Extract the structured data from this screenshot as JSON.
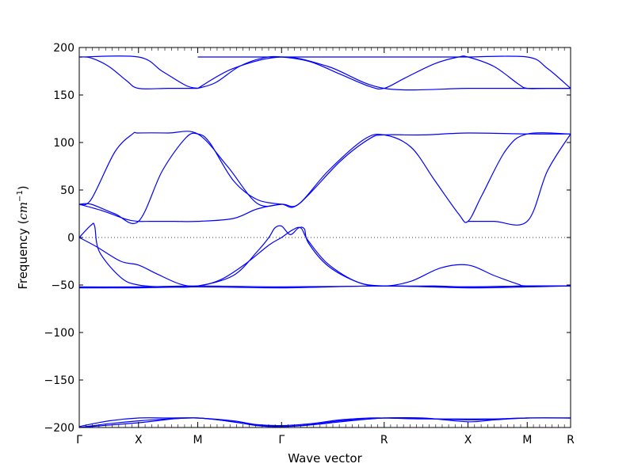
{
  "chart_data": {
    "type": "line",
    "xlabel": "Wave vector",
    "ylabel": "Frequency (cm⁻¹)",
    "ylabel_parts": {
      "prefix": "Frequency (",
      "unit": "cm",
      "exponent": "−1",
      "suffix": ")"
    },
    "ylim": [
      -200,
      200
    ],
    "yticks": [
      {
        "value": 200,
        "label": "200"
      },
      {
        "value": 150,
        "label": "150"
      },
      {
        "value": 100,
        "label": "100"
      },
      {
        "value": 50,
        "label": "50"
      },
      {
        "value": 0,
        "label": "0"
      },
      {
        "value": -50,
        "label": "−50"
      },
      {
        "value": -100,
        "label": "−100"
      },
      {
        "value": -150,
        "label": "−150"
      },
      {
        "value": -200,
        "label": "−200"
      }
    ],
    "xlim": [
      0,
      4.146
    ],
    "high_symmetry_points": [
      {
        "label": "Γ",
        "x": 0.0
      },
      {
        "label": "X",
        "x": 0.5
      },
      {
        "label": "M",
        "x": 1.0
      },
      {
        "label": "Γ",
        "x": 1.707
      },
      {
        "label": "R",
        "x": 2.573
      },
      {
        "label": "X",
        "x": 3.28
      },
      {
        "label": "M",
        "x": 3.78
      },
      {
        "label": "R",
        "x": 4.146
      }
    ],
    "zero_line": true,
    "color": "#0000ff",
    "series": [
      {
        "points": [
          [
            0,
            190
          ],
          [
            0.1,
            189
          ],
          [
            0.25,
            180
          ],
          [
            0.4,
            165
          ],
          [
            0.5,
            157
          ],
          [
            0.75,
            157
          ],
          [
            1.0,
            157
          ]
        ]
      },
      {
        "points": [
          [
            0,
            190
          ],
          [
            0.5,
            190
          ],
          [
            0.7,
            175
          ],
          [
            0.9,
            160
          ],
          [
            1.0,
            157
          ]
        ]
      },
      {
        "points": [
          [
            1.0,
            157
          ],
          [
            1.15,
            163
          ],
          [
            1.35,
            180
          ],
          [
            1.55,
            189
          ],
          [
            1.707,
            190
          ],
          [
            1.95,
            185
          ],
          [
            2.2,
            172
          ],
          [
            2.45,
            159
          ],
          [
            2.573,
            157
          ],
          [
            2.75,
            168
          ],
          [
            3.0,
            183
          ],
          [
            3.2,
            190
          ],
          [
            3.28,
            190
          ],
          [
            3.5,
            180
          ],
          [
            3.7,
            162
          ],
          [
            3.78,
            157
          ],
          [
            3.95,
            157
          ],
          [
            4.146,
            157
          ]
        ]
      },
      {
        "points": [
          [
            1.0,
            157
          ],
          [
            1.3,
            178
          ],
          [
            1.707,
            190
          ],
          [
            2.1,
            180
          ],
          [
            2.573,
            157
          ],
          [
            3.28,
            157
          ],
          [
            3.78,
            157
          ],
          [
            4.146,
            157
          ]
        ]
      },
      {
        "points": [
          [
            3.28,
            190
          ],
          [
            3.78,
            190
          ],
          [
            3.95,
            178
          ],
          [
            4.146,
            157
          ]
        ]
      },
      {
        "points": [
          [
            1.0,
            190
          ],
          [
            1.707,
            190
          ],
          [
            2.573,
            190
          ],
          [
            3.28,
            190
          ]
        ]
      },
      {
        "points": [
          [
            0,
            35
          ],
          [
            0.1,
            40
          ],
          [
            0.3,
            90
          ],
          [
            0.45,
            109
          ],
          [
            0.5,
            110
          ],
          [
            0.75,
            110
          ],
          [
            1.0,
            109
          ],
          [
            1.25,
            75
          ],
          [
            1.5,
            36
          ],
          [
            1.707,
            35
          ],
          [
            1.85,
            35
          ],
          [
            2.2,
            80
          ],
          [
            2.45,
            104
          ],
          [
            2.573,
            108
          ],
          [
            2.9,
            108
          ],
          [
            3.28,
            110
          ],
          [
            3.78,
            109
          ],
          [
            4.146,
            109
          ]
        ]
      },
      {
        "points": [
          [
            0,
            35
          ],
          [
            0.2,
            28
          ],
          [
            0.4,
            19
          ],
          [
            0.5,
            17
          ],
          [
            0.6,
            17
          ],
          [
            0.8,
            17
          ],
          [
            1.0,
            17
          ],
          [
            1.3,
            20
          ],
          [
            1.5,
            30
          ],
          [
            1.707,
            35
          ],
          [
            1.85,
            35
          ],
          [
            2.1,
            70
          ],
          [
            2.4,
            103
          ],
          [
            2.573,
            108
          ],
          [
            2.8,
            95
          ],
          [
            3.0,
            60
          ],
          [
            3.2,
            25
          ],
          [
            3.28,
            17
          ],
          [
            3.4,
            45
          ],
          [
            3.6,
            92
          ],
          [
            3.78,
            109
          ],
          [
            4.146,
            109
          ]
        ]
      },
      {
        "points": [
          [
            0,
            35
          ],
          [
            0.1,
            35
          ],
          [
            0.3,
            25
          ],
          [
            0.5,
            17
          ],
          [
            0.7,
            70
          ],
          [
            0.9,
            105
          ],
          [
            1.0,
            109
          ],
          [
            1.1,
            100
          ],
          [
            1.3,
            60
          ],
          [
            1.5,
            40
          ],
          [
            1.707,
            35
          ]
        ]
      },
      {
        "points": [
          [
            3.28,
            17
          ],
          [
            3.5,
            17
          ],
          [
            3.78,
            17
          ],
          [
            3.95,
            70
          ],
          [
            4.146,
            109
          ]
        ]
      },
      {
        "points": [
          [
            0,
            0
          ],
          [
            0.1,
            13
          ],
          [
            0.13,
            12
          ],
          [
            0.17,
            -15
          ],
          [
            0.35,
            -42
          ],
          [
            0.5,
            -50
          ],
          [
            0.75,
            -52
          ],
          [
            1.0,
            -51
          ],
          [
            1.3,
            -40
          ],
          [
            1.5,
            -15
          ],
          [
            1.6,
            0
          ],
          [
            1.65,
            10
          ],
          [
            1.707,
            12
          ],
          [
            1.78,
            3
          ],
          [
            1.85,
            10
          ],
          [
            1.9,
            9
          ],
          [
            1.93,
            -5
          ],
          [
            2.1,
            -30
          ],
          [
            2.35,
            -47
          ],
          [
            2.573,
            -51
          ],
          [
            3.0,
            -51
          ],
          [
            3.28,
            -52
          ],
          [
            3.78,
            -51
          ],
          [
            4.146,
            -51
          ]
        ]
      },
      {
        "points": [
          [
            0,
            0
          ],
          [
            0.15,
            -10
          ],
          [
            0.35,
            -25
          ],
          [
            0.5,
            -29
          ],
          [
            0.65,
            -38
          ],
          [
            0.85,
            -49
          ],
          [
            1.0,
            -51
          ],
          [
            1.2,
            -44
          ],
          [
            1.4,
            -28
          ],
          [
            1.6,
            -8
          ],
          [
            1.707,
            0
          ],
          [
            1.8,
            8
          ],
          [
            1.87,
            10
          ],
          [
            1.93,
            -3
          ],
          [
            2.1,
            -28
          ],
          [
            2.35,
            -47
          ],
          [
            2.573,
            -51
          ],
          [
            2.8,
            -46
          ],
          [
            3.05,
            -32
          ],
          [
            3.28,
            -29
          ],
          [
            3.5,
            -40
          ],
          [
            3.7,
            -49
          ],
          [
            3.78,
            -51
          ],
          [
            4.146,
            -51
          ]
        ]
      },
      {
        "points": [
          [
            0,
            -53
          ],
          [
            0.5,
            -53
          ],
          [
            1.0,
            -52
          ],
          [
            1.707,
            -53
          ],
          [
            2.573,
            -51
          ],
          [
            3.28,
            -53
          ],
          [
            3.78,
            -52
          ],
          [
            4.146,
            -51
          ]
        ]
      },
      {
        "points": [
          [
            0,
            -52
          ],
          [
            0.5,
            -52
          ],
          [
            1.0,
            -51
          ],
          [
            1.707,
            -52
          ],
          [
            2.573,
            -51
          ],
          [
            3.28,
            -52
          ],
          [
            3.78,
            -51
          ],
          [
            4.146,
            -51
          ]
        ]
      },
      {
        "points": [
          [
            0,
            -200
          ],
          [
            0.25,
            -196
          ],
          [
            0.5,
            -193
          ],
          [
            0.75,
            -191
          ],
          [
            1.0,
            -190
          ],
          [
            1.3,
            -194
          ],
          [
            1.5,
            -198
          ],
          [
            1.707,
            -199
          ],
          [
            1.95,
            -197
          ],
          [
            2.2,
            -193
          ],
          [
            2.45,
            -191
          ],
          [
            2.573,
            -190
          ],
          [
            2.9,
            -190
          ],
          [
            3.28,
            -194
          ],
          [
            3.5,
            -192
          ],
          [
            3.78,
            -190
          ],
          [
            4.146,
            -190
          ]
        ]
      },
      {
        "points": [
          [
            0,
            -199
          ],
          [
            0.25,
            -193
          ],
          [
            0.5,
            -190
          ],
          [
            0.75,
            -190
          ],
          [
            1.0,
            -190
          ],
          [
            1.3,
            -193
          ],
          [
            1.5,
            -197
          ],
          [
            1.707,
            -198
          ],
          [
            1.95,
            -196
          ],
          [
            2.2,
            -192
          ],
          [
            2.45,
            -190
          ],
          [
            2.573,
            -190
          ],
          [
            2.9,
            -191
          ],
          [
            3.28,
            -191
          ],
          [
            3.5,
            -191
          ],
          [
            3.78,
            -190
          ],
          [
            4.146,
            -190
          ]
        ]
      },
      {
        "points": [
          [
            0,
            -200
          ],
          [
            0.5,
            -195
          ],
          [
            1.0,
            -190
          ],
          [
            1.707,
            -199
          ],
          [
            2.573,
            -190
          ],
          [
            3.28,
            -192
          ],
          [
            3.78,
            -190
          ],
          [
            4.146,
            -190
          ]
        ]
      }
    ]
  }
}
